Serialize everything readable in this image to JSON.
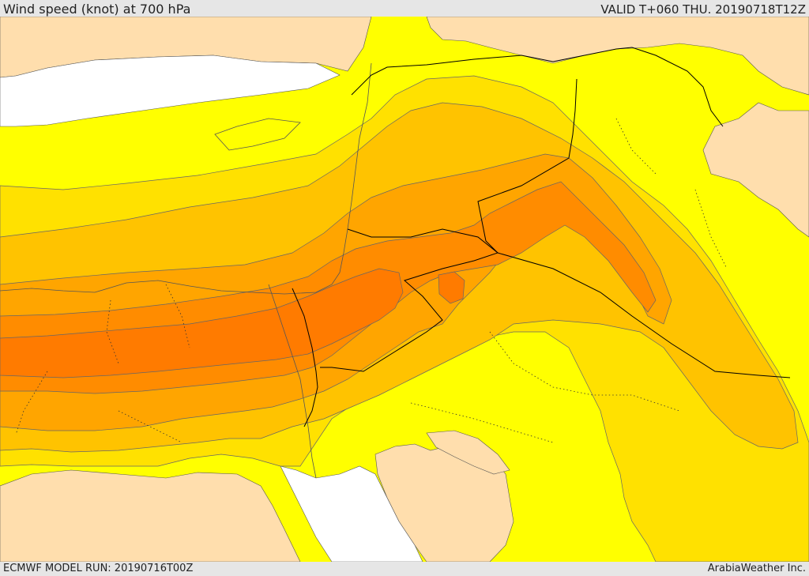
{
  "header": {
    "title": "Wind speed (knot) at 700 hPa",
    "valid_time": "VALID T+060 THU. 20190718T12Z"
  },
  "footer": {
    "model_run": "ECMWF MODEL RUN: 20190716T00Z",
    "credit": "ArabiaWeather Inc."
  },
  "map": {
    "field": "wind speed",
    "unit": "knot",
    "level_hpa": 700,
    "palette": {
      "land": "#ffdead",
      "sea": "#ffffff",
      "band_1": "#ffff00",
      "band_2": "#ffe100",
      "band_3": "#ffc300",
      "band_4": "#ffa500",
      "band_5": "#ff8c00",
      "band_6": "#ff7b00",
      "border": "#000000",
      "contour": "#555555"
    }
  }
}
